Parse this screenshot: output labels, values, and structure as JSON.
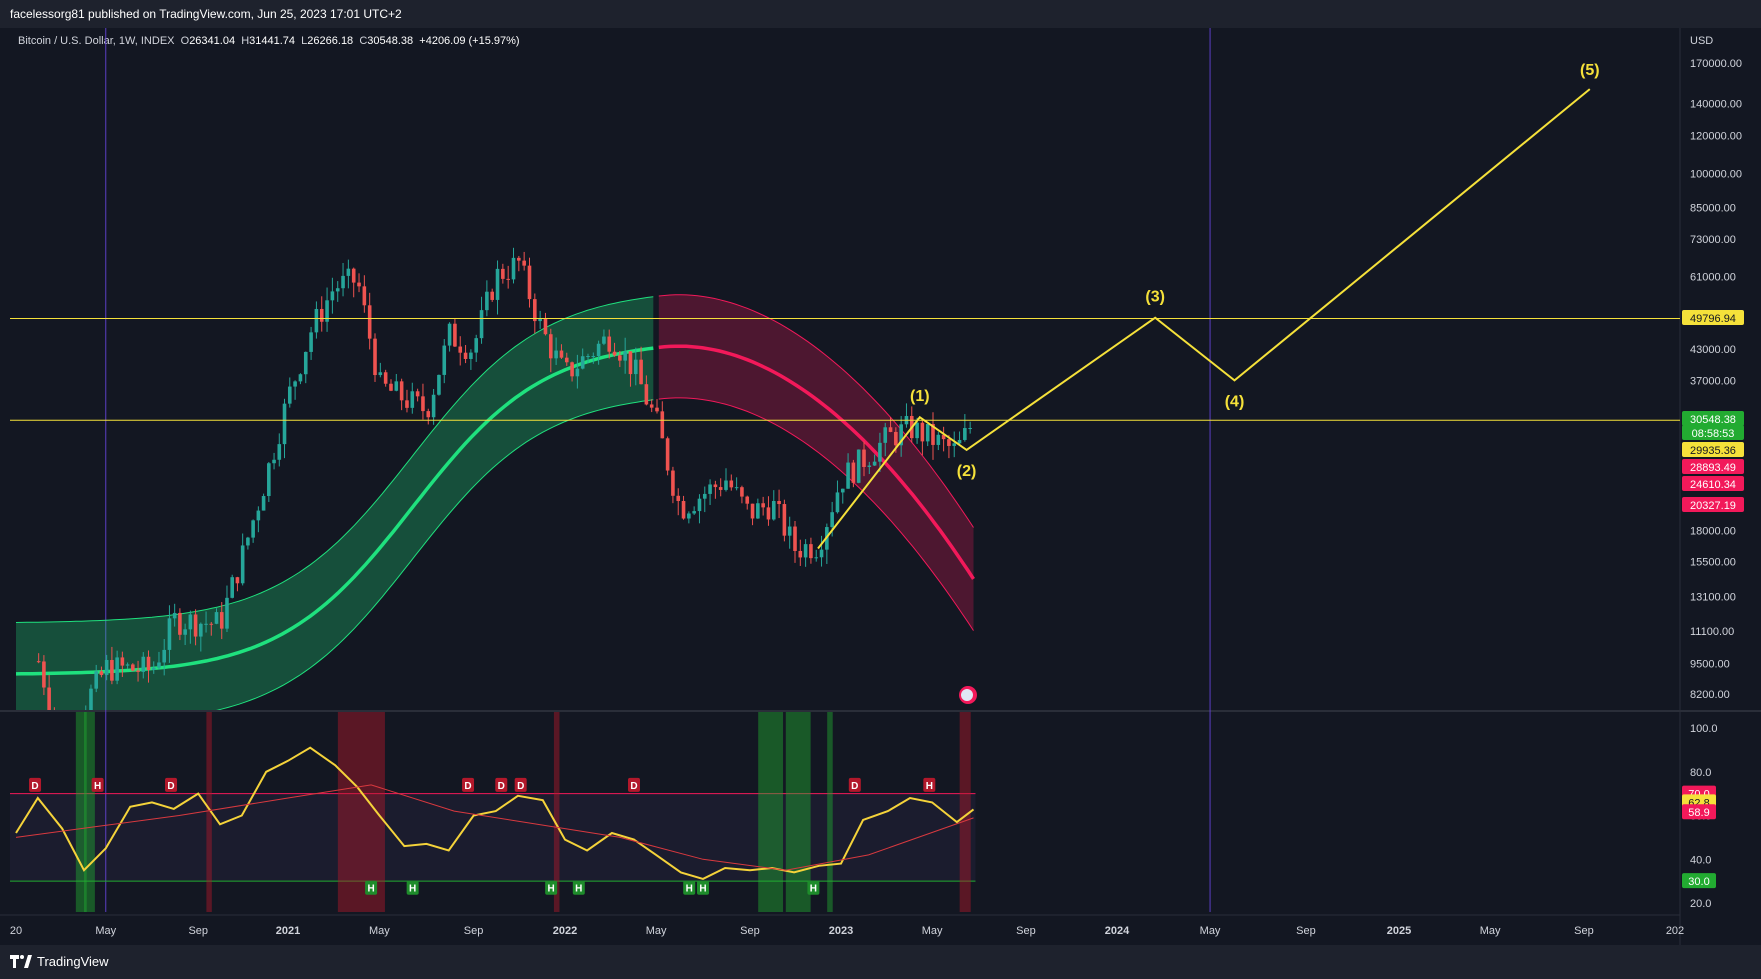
{
  "header": {
    "publisher": "facelessorg81 published on TradingView.com, Jun 25, 2023 17:01 UTC+2"
  },
  "legend": {
    "symbol": "Bitcoin / U.S. Dollar, 1W, INDEX",
    "o_label": "O",
    "o_value": "26341.04",
    "h_label": "H",
    "h_value": "31441.74",
    "l_label": "L",
    "l_value": "26266.18",
    "c_label": "C",
    "c_value": "30548.38",
    "change": "+4206.09 (+15.97%)"
  },
  "footer": {
    "brand": "TradingView"
  },
  "colors": {
    "background": "#131722",
    "candle_up": "#26a69a",
    "candle_down": "#ef5350",
    "wave_line": "#f5e13a",
    "band_green": "#1fe17e",
    "band_red": "#f2195a",
    "rsi_line": "#f5d33a",
    "rsi_ma": "#d8393f"
  },
  "chart_data": [
    {
      "type": "candlestick",
      "title": "Bitcoin / U.S. Dollar, 1W, INDEX",
      "y_scale": "log",
      "currency": "USD",
      "ylim": [
        7300,
        200000
      ],
      "y_ticks": [
        "170000.00",
        "140000.00",
        "120000.00",
        "100000.00",
        "85000.00",
        "73000.00",
        "61000.00",
        "43000.00",
        "37000.00",
        "18000.00",
        "15500.00",
        "13100.00",
        "11100.00",
        "9500.00",
        "8200.00"
      ],
      "x_ticks": [
        "20",
        "May",
        "Sep",
        "2021",
        "May",
        "Sep",
        "2022",
        "May",
        "Sep",
        "2023",
        "May",
        "Sep",
        "2024",
        "May",
        "Sep",
        "2025",
        "May",
        "Sep",
        "202"
      ],
      "price_path": [
        [
          "2020-02",
          9600
        ],
        [
          "2020-03",
          6500
        ],
        [
          "2020-05",
          9300
        ],
        [
          "2020-07",
          9200
        ],
        [
          "2020-08",
          11700
        ],
        [
          "2020-10",
          11500
        ],
        [
          "2020-11",
          16000
        ],
        [
          "2020-12",
          23000
        ],
        [
          "2021-01",
          34000
        ],
        [
          "2021-02",
          47000
        ],
        [
          "2021-03",
          58000
        ],
        [
          "2021-04",
          60000
        ],
        [
          "2021-05",
          36000
        ],
        [
          "2021-06",
          34000
        ],
        [
          "2021-07",
          32000
        ],
        [
          "2021-08",
          46000
        ],
        [
          "2021-09",
          43000
        ],
        [
          "2021-10",
          61000
        ],
        [
          "2021-11",
          65000
        ],
        [
          "2021-12",
          47000
        ],
        [
          "2022-01",
          38000
        ],
        [
          "2022-03",
          46000
        ],
        [
          "2022-04",
          39000
        ],
        [
          "2022-05",
          30000
        ],
        [
          "2022-06",
          20000
        ],
        [
          "2022-08",
          23000
        ],
        [
          "2022-09",
          19500
        ],
        [
          "2022-10",
          20500
        ],
        [
          "2022-11",
          16500
        ],
        [
          "2022-12",
          16800
        ],
        [
          "2023-01",
          23000
        ],
        [
          "2023-03",
          28000
        ],
        [
          "2023-04",
          29500
        ],
        [
          "2023-06",
          26300
        ],
        [
          "2023-06-25",
          30548.38
        ]
      ],
      "horizontal_lines": [
        49796.94,
        30548.38
      ],
      "price_labels": [
        {
          "value": "49796.94",
          "color": "#f5e13a"
        },
        {
          "value": "30548.38",
          "color": "#22ab31"
        },
        {
          "value": "08:58:53",
          "color": "#22ab31"
        },
        {
          "value": "29935.36",
          "color": "#f5e13a"
        },
        {
          "value": "28893.49",
          "color": "#f2195a"
        },
        {
          "value": "24610.34",
          "color": "#f2195a"
        },
        {
          "value": "20327.19",
          "color": "#f2195a"
        }
      ],
      "wave_projection": [
        {
          "label": "",
          "x": "2022-12-01",
          "y": 16500
        },
        {
          "label": "(1)",
          "x": "2023-04-14",
          "y": 31000
        },
        {
          "label": "(2)",
          "x": "2023-06-15",
          "y": 26500
        },
        {
          "label": "(3)",
          "x": "2024-02-20",
          "y": 50000
        },
        {
          "label": "(4)",
          "x": "2024-06-01",
          "y": 37000
        },
        {
          "label": "(5)",
          "x": "2025-09-10",
          "y": 150000
        }
      ],
      "band_upper_green": 30000,
      "band_center": 28893.49,
      "band_lower_red": 20327.19
    },
    {
      "type": "line",
      "title": "",
      "ylim": [
        10,
        105
      ],
      "y_ticks": [
        "100.0",
        "80.0",
        "60.0",
        "40.0",
        "20.0"
      ],
      "levels": [
        70.0,
        30.0
      ],
      "value_labels": [
        {
          "value": "70.0",
          "color": "#f2195a"
        },
        {
          "value": "62.8",
          "color": "#f5e13a"
        },
        {
          "value": "58.9",
          "color": "#f2195a"
        },
        {
          "value": "30.0",
          "color": "#22ab31"
        }
      ],
      "series": [
        {
          "values": [
            [
              2020.0,
              52
            ],
            [
              2020.08,
              68
            ],
            [
              2020.17,
              54
            ],
            [
              2020.25,
              35
            ],
            [
              2020.33,
              45
            ],
            [
              2020.42,
              64
            ],
            [
              2020.5,
              66
            ],
            [
              2020.58,
              63
            ],
            [
              2020.67,
              70
            ],
            [
              2020.75,
              56
            ],
            [
              2020.83,
              60
            ],
            [
              2020.92,
              80
            ],
            [
              2021.0,
              85
            ],
            [
              2021.08,
              91
            ],
            [
              2021.17,
              83
            ],
            [
              2021.25,
              73
            ],
            [
              2021.33,
              60
            ],
            [
              2021.42,
              46
            ],
            [
              2021.5,
              47
            ],
            [
              2021.58,
              44
            ],
            [
              2021.67,
              60
            ],
            [
              2021.75,
              62
            ],
            [
              2021.83,
              69
            ],
            [
              2021.92,
              67
            ],
            [
              2022.0,
              49
            ],
            [
              2022.08,
              44
            ],
            [
              2022.17,
              52
            ],
            [
              2022.25,
              49
            ],
            [
              2022.33,
              42
            ],
            [
              2022.42,
              34
            ],
            [
              2022.5,
              31
            ],
            [
              2022.58,
              36
            ],
            [
              2022.67,
              35
            ],
            [
              2022.75,
              36
            ],
            [
              2022.83,
              34
            ],
            [
              2022.92,
              37
            ],
            [
              2023.0,
              38
            ],
            [
              2023.08,
              58
            ],
            [
              2023.17,
              62
            ],
            [
              2023.25,
              68
            ],
            [
              2023.33,
              66
            ],
            [
              2023.42,
              57
            ],
            [
              2023.48,
              62.8
            ]
          ]
        },
        {
          "values": [
            [
              2020.0,
              50
            ],
            [
              2020.3,
              55
            ],
            [
              2020.6,
              60
            ],
            [
              2021.0,
              68
            ],
            [
              2021.3,
              74
            ],
            [
              2021.6,
              62
            ],
            [
              2021.9,
              56
            ],
            [
              2022.2,
              50
            ],
            [
              2022.5,
              40
            ],
            [
              2022.8,
              35
            ],
            [
              2023.1,
              42
            ],
            [
              2023.48,
              58.9
            ]
          ]
        }
      ],
      "markers": [
        "D",
        "H",
        "D",
        "H",
        "H",
        "D",
        "D",
        "D",
        "H",
        "H",
        "H",
        "D",
        "H",
        "D",
        "H",
        "H"
      ],
      "highlight_zones": [
        "green",
        "green",
        "red",
        "red",
        "red",
        "green",
        "green",
        "green",
        "red"
      ]
    }
  ]
}
